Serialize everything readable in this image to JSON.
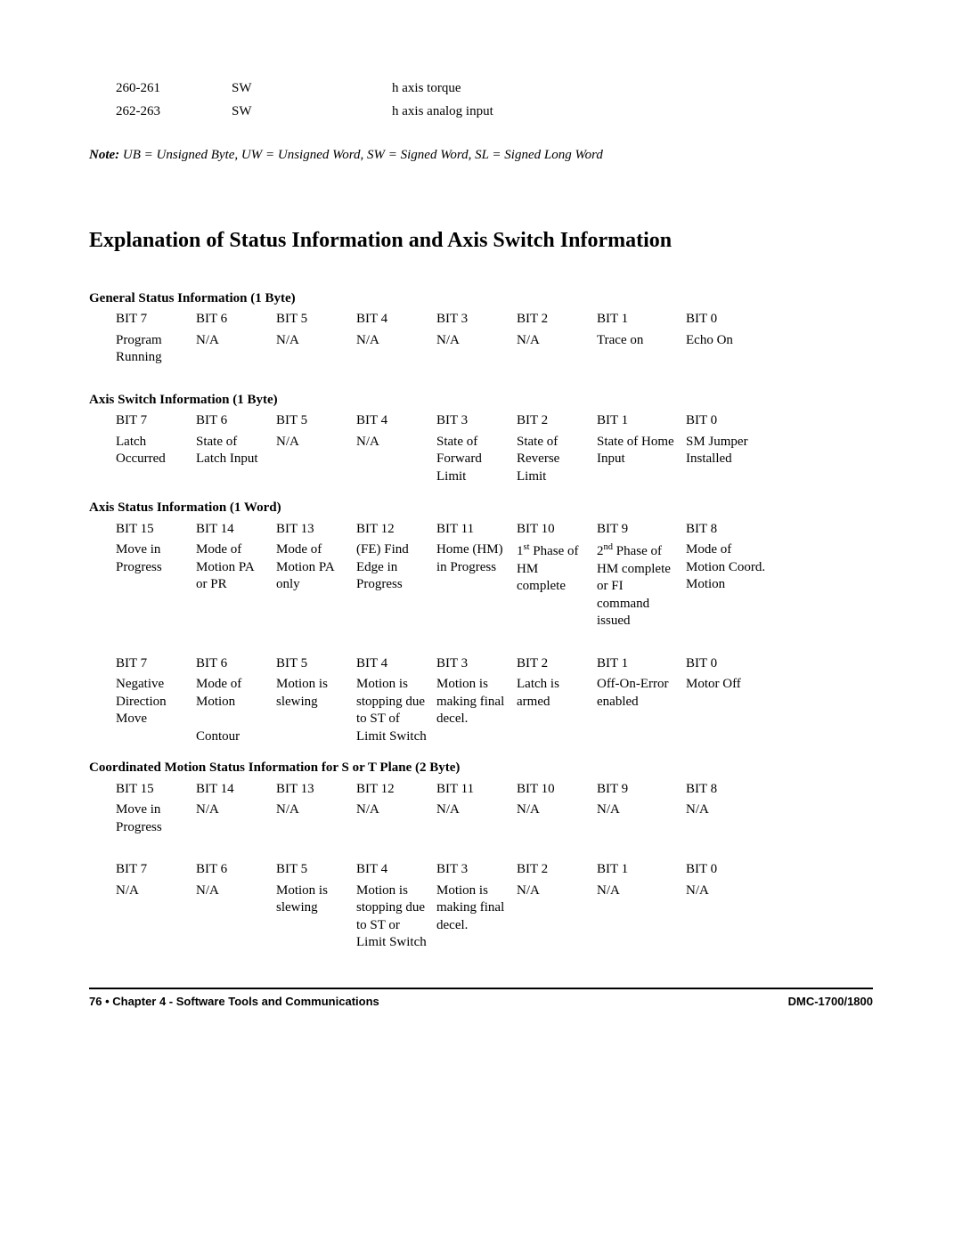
{
  "topTable": {
    "rows": [
      {
        "addr": "260-261",
        "type": "SW",
        "desc": "h axis torque"
      },
      {
        "addr": "262-263",
        "type": "SW",
        "desc": "h axis analog input"
      }
    ]
  },
  "note": {
    "label": "Note:",
    "body": " UB = Unsigned Byte,  UW = Unsigned Word,  SW = Signed Word,  SL = Signed Long Word"
  },
  "heading": "Explanation of Status Information and Axis Switch Information",
  "general": {
    "title": "General Status Information (1 Byte)",
    "header": [
      "BIT 7",
      "BIT 6",
      "BIT 5",
      "BIT 4",
      "BIT 3",
      "BIT 2",
      "BIT 1",
      "BIT 0"
    ],
    "row": [
      "Program Running",
      "N/A",
      "N/A",
      "N/A",
      "N/A",
      "N/A",
      "Trace on",
      "Echo On"
    ]
  },
  "axisSwitch": {
    "title": "Axis Switch Information (1 Byte)",
    "header": [
      "BIT 7",
      "BIT 6",
      "BIT 5",
      "BIT 4",
      "BIT 3",
      "BIT 2",
      "BIT 1",
      "BIT 0"
    ],
    "row": [
      "Latch Occurred",
      "State of Latch Input",
      "N/A",
      "N/A",
      "State of Forward Limit",
      "State of Reverse Limit",
      "State of Home Input",
      "SM Jumper Installed"
    ]
  },
  "axisStatus": {
    "title": "Axis Status Information (1 Word)",
    "header1": [
      "BIT 15",
      "BIT 14",
      "BIT 13",
      "BIT 12",
      "BIT 11",
      "BIT 10",
      "BIT 9",
      "BIT 8"
    ],
    "row1": [
      "Move in Progress",
      "Mode of Motion PA or PR",
      "Mode of Motion PA only",
      "(FE) Find Edge in Progress",
      "Home (HM) in Progress",
      "",
      "",
      ""
    ],
    "row1_bit10_pre": "1",
    "row1_bit10_sup": "st",
    "row1_bit10_post": " Phase of HM complete",
    "row1_bit9_pre": "2",
    "row1_bit9_sup": "nd",
    "row1_bit9_post": " Phase of HM complete or FI command issued",
    "row1_bit8": "Mode of Motion Coord. Motion",
    "header2": [
      "BIT 7",
      "BIT 6",
      "BIT 5",
      "BIT 4",
      "BIT 3",
      "BIT 2",
      "BIT 1",
      "BIT 0"
    ],
    "row2": [
      "Negative Direction Move",
      "Mode of Motion\n\nContour",
      "Motion is slewing",
      "Motion is stopping due to ST of Limit Switch",
      "Motion is making final decel.",
      "Latch is armed",
      "Off-On-Error enabled",
      "Motor Off"
    ]
  },
  "coord": {
    "title": "Coordinated Motion Status Information for S or T Plane (2 Byte)",
    "header1": [
      "BIT 15",
      "BIT 14",
      "BIT 13",
      "BIT 12",
      "BIT 11",
      "BIT 10",
      "BIT 9",
      "BIT 8"
    ],
    "row1": [
      "Move in Progress",
      "N/A",
      "N/A",
      "N/A",
      "N/A",
      "N/A",
      "N/A",
      "N/A"
    ],
    "header2": [
      "BIT 7",
      "BIT 6",
      "BIT 5",
      "BIT 4",
      "BIT 3",
      "BIT 2",
      "BIT 1",
      "BIT 0"
    ],
    "row2": [
      "N/A",
      "N/A",
      "Motion is slewing",
      "Motion is stopping due to ST or Limit Switch",
      "Motion is making final decel.",
      "N/A",
      "N/A",
      "N/A"
    ]
  },
  "footer": {
    "left": "76 • Chapter 4 - Software Tools and Communications",
    "right": "DMC-1700/1800"
  }
}
